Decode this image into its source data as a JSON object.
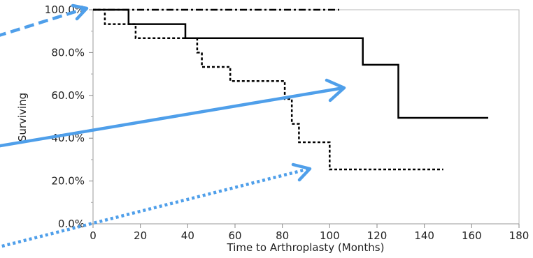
{
  "chart_data": {
    "type": "line",
    "title": "",
    "xlabel": "Time to Arthroplasty (Months)",
    "ylabel": "Surviving",
    "xlim": [
      0,
      180
    ],
    "ylim": [
      0,
      100
    ],
    "x_ticks": [
      {
        "value": 0,
        "label": "0"
      },
      {
        "value": 20,
        "label": "20"
      },
      {
        "value": 40,
        "label": "40"
      },
      {
        "value": 60,
        "label": "60"
      },
      {
        "value": 80,
        "label": "80"
      },
      {
        "value": 100,
        "label": "100"
      },
      {
        "value": 120,
        "label": "120"
      },
      {
        "value": 140,
        "label": "140"
      },
      {
        "value": 160,
        "label": "160"
      },
      {
        "value": 180,
        "label": "180"
      }
    ],
    "y_ticks": [
      {
        "value": 0,
        "label": "0.0%"
      },
      {
        "value": 20,
        "label": "20.0%"
      },
      {
        "value": 40,
        "label": "40.0%"
      },
      {
        "value": 60,
        "label": "60.0%"
      },
      {
        "value": 80,
        "label": "80.0%"
      },
      {
        "value": 100,
        "label": "100.0%"
      }
    ],
    "y_minor_ticks": [
      10,
      30,
      50,
      70,
      90
    ],
    "grid": false,
    "legend": "none",
    "series": [
      {
        "style": "dashdot",
        "color": "#000000",
        "points": [
          [
            0,
            100
          ],
          [
            104,
            100
          ]
        ]
      },
      {
        "style": "solid",
        "color": "#000000",
        "points": [
          [
            0,
            100
          ],
          [
            15,
            100
          ],
          [
            15,
            93.3
          ],
          [
            39,
            93.3
          ],
          [
            39,
            86.7
          ],
          [
            114,
            86.7
          ],
          [
            114,
            74.3
          ],
          [
            129,
            74.3
          ],
          [
            129,
            49.5
          ],
          [
            167,
            49.5
          ]
        ]
      },
      {
        "style": "dotted",
        "color": "#000000",
        "points": [
          [
            0,
            100
          ],
          [
            5,
            100
          ],
          [
            5,
            93.3
          ],
          [
            18,
            93.3
          ],
          [
            18,
            86.7
          ],
          [
            44,
            86.7
          ],
          [
            44,
            80
          ],
          [
            46,
            80
          ],
          [
            46,
            73.3
          ],
          [
            58,
            73.3
          ],
          [
            58,
            66.7
          ],
          [
            81,
            66.7
          ],
          [
            81,
            58.3
          ],
          [
            84,
            58.3
          ],
          [
            84,
            46.7
          ],
          [
            87,
            46.7
          ],
          [
            87,
            38.1
          ],
          [
            100,
            38.1
          ],
          [
            100,
            25.4
          ],
          [
            148,
            25.4
          ]
        ]
      }
    ],
    "annotations": [
      {
        "type": "arrow",
        "style": "dashed",
        "color": "#4f9fea"
      },
      {
        "type": "arrow",
        "style": "solid",
        "color": "#4f9fea"
      },
      {
        "type": "arrow",
        "style": "dotted",
        "color": "#4f9fea"
      }
    ]
  }
}
